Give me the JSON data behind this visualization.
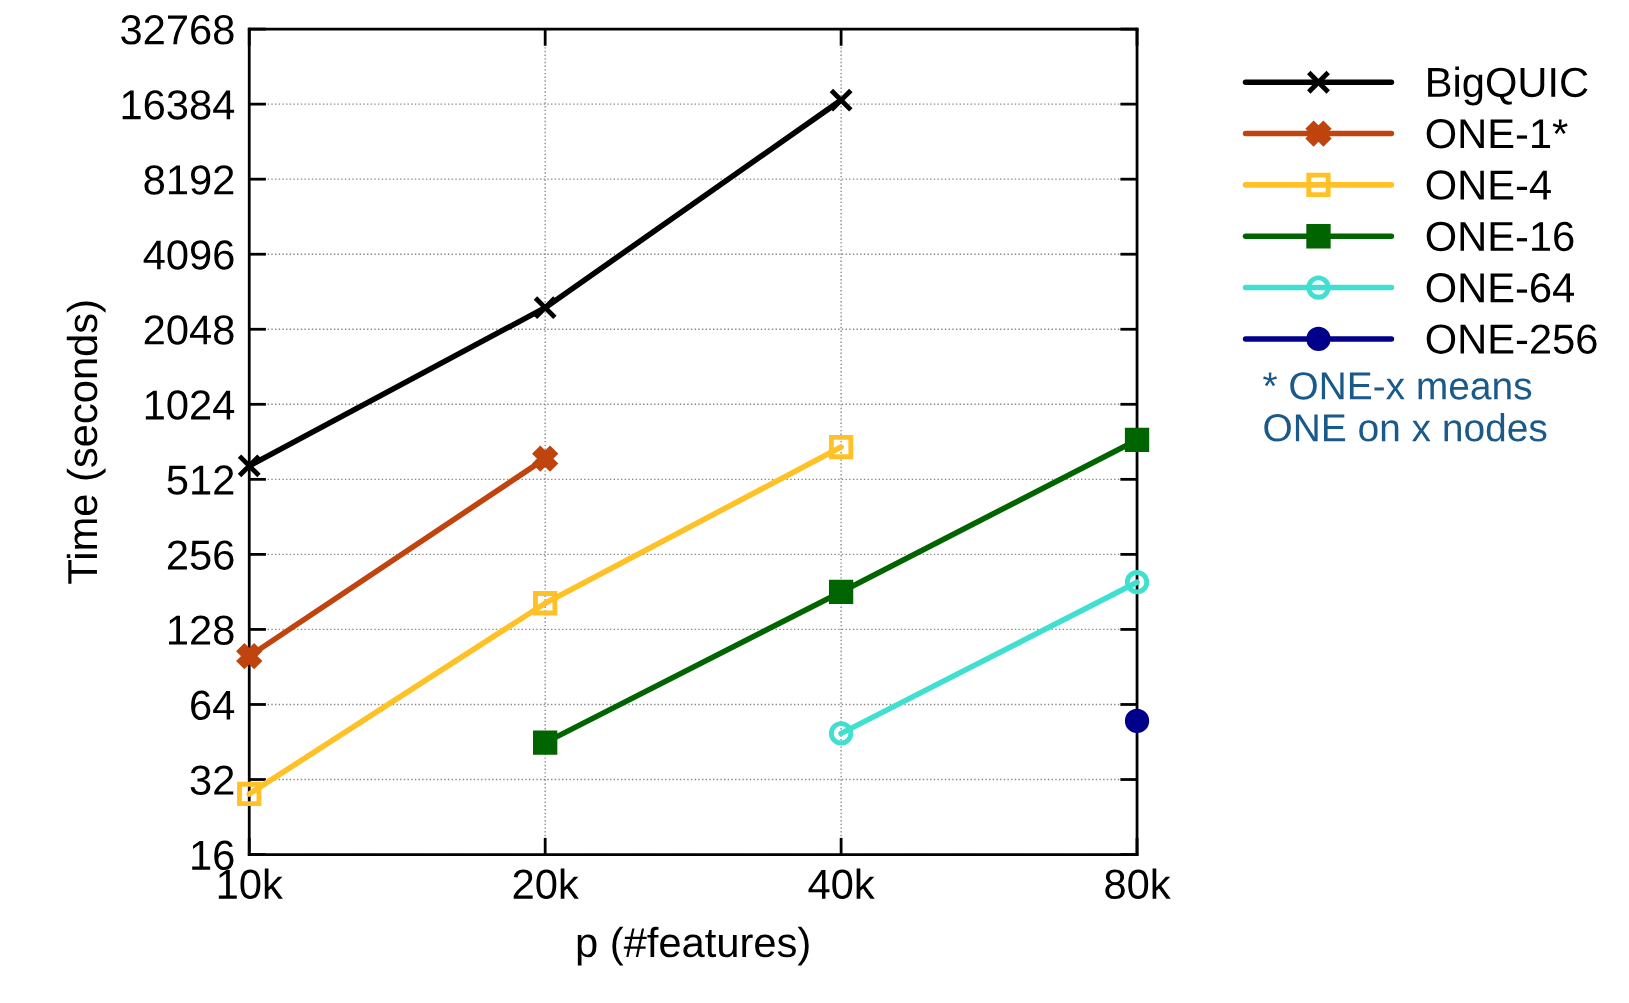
{
  "chart_data": {
    "type": "line",
    "xlabel": "p (#features)",
    "ylabel": "Time (seconds)",
    "x": [
      10000,
      20000,
      40000,
      80000
    ],
    "series": [
      {
        "name": "BigQUIC",
        "color": "#000000",
        "marker": "cross",
        "values": [
          580,
          2500,
          17000,
          null
        ]
      },
      {
        "name": "ONE-1*",
        "color": "#c0440e",
        "marker": "cross",
        "values": [
          100,
          620,
          null,
          null
        ]
      },
      {
        "name": "ONE-4",
        "color": "#ffc125",
        "marker": "square",
        "values": [
          28,
          163,
          690,
          null
        ]
      },
      {
        "name": "ONE-16",
        "color": "#006400",
        "marker": "square",
        "values": [
          null,
          45,
          181,
          737
        ]
      },
      {
        "name": "ONE-64",
        "color": "#40e0d0",
        "marker": "circle",
        "values": [
          null,
          null,
          49,
          198
        ]
      },
      {
        "name": "ONE-256",
        "color": "#00008b",
        "marker": "circle",
        "values": [
          null,
          null,
          null,
          55
        ]
      }
    ],
    "log": "xy",
    "xlim": [
      10000,
      80000
    ],
    "ylim": [
      16,
      32768
    ],
    "xticks": [
      {
        "value": 10000,
        "label": "10k"
      },
      {
        "value": 20000,
        "label": "20k"
      },
      {
        "value": 40000,
        "label": "40k"
      },
      {
        "value": 80000,
        "label": "80k"
      }
    ],
    "yticks": [
      16,
      32,
      64,
      128,
      256,
      512,
      1024,
      2048,
      4096,
      8192,
      16384,
      32768
    ],
    "grid": true,
    "legend": "top right",
    "line_style": "solid",
    "annotations": [
      "* ONE-x means\nONE on x nodes"
    ]
  }
}
